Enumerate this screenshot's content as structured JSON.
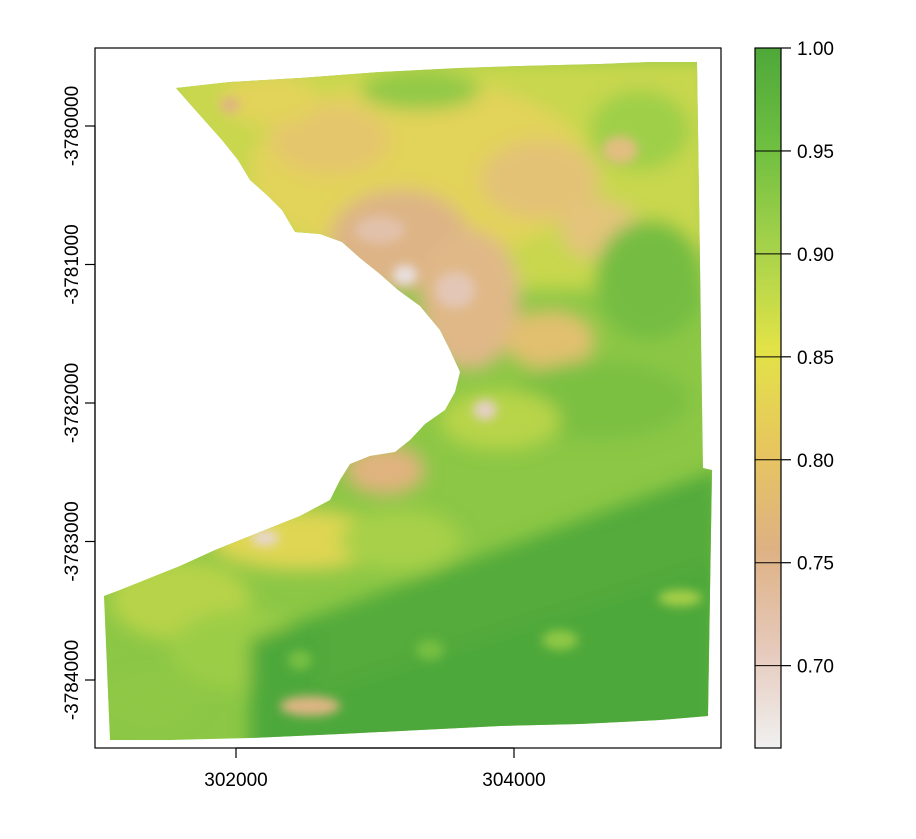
{
  "chart_data": {
    "type": "heatmap",
    "title": "",
    "xlabel": "",
    "ylabel": "",
    "x_ticks": [
      "302000",
      "304000"
    ],
    "x_tick_values": [
      302000,
      304000
    ],
    "xlim": [
      301000,
      305500
    ],
    "y_ticks": [
      "-3780000",
      "-3781000",
      "-3782000",
      "-3783000",
      "-3784000"
    ],
    "y_tick_values": [
      -3780000,
      -3781000,
      -3782000,
      -3783000,
      -3784000
    ],
    "ylim": [
      -3784500,
      -3779600
    ],
    "colorbar": {
      "ticks": [
        "1.00",
        "0.95",
        "0.90",
        "0.85",
        "0.80",
        "0.75",
        "0.70"
      ],
      "tick_values": [
        1.0,
        0.95,
        0.9,
        0.85,
        0.8,
        0.75,
        0.7
      ],
      "range": [
        0.66,
        1.0
      ],
      "palette": "terrain",
      "colors": [
        "#f0f0f0",
        "#e6c9ba",
        "#deb183",
        "#e7c65e",
        "#e2e347",
        "#a6d24b",
        "#6fbf40",
        "#4ea83a"
      ]
    },
    "grid": false,
    "legend": "colorbar-right"
  }
}
